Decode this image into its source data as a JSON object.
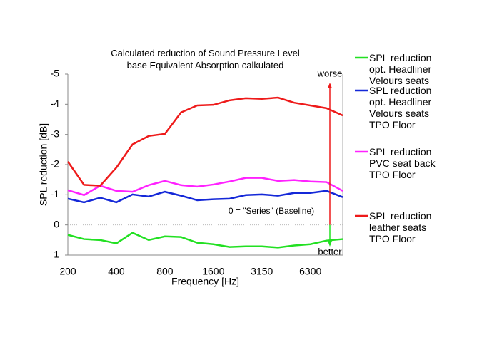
{
  "chart_data": {
    "type": "line",
    "title": "Calculated reduction of Sound Pressure Level\nbase Equivalent Absorption calkulated",
    "x_label": "Frequency [Hz]",
    "y_label": "SPL reduction [dB]",
    "categories": [
      "200",
      null,
      null,
      "400",
      null,
      null,
      "800",
      null,
      null,
      "1600",
      null,
      null,
      "3150",
      null,
      null,
      "6300",
      null,
      null
    ],
    "ylim": [
      -5,
      1
    ],
    "y_inverted": true,
    "yticks": [
      -5,
      -4,
      -3,
      -2,
      -1,
      0,
      1
    ],
    "annotations": [
      "worse",
      "better",
      "0 = \"Series\" (Baseline)"
    ],
    "series": [
      {
        "name": "SPL reduction\nopt. Headliner\nVelours seats",
        "color": "#22e022",
        "values": [
          0.33,
          0.47,
          0.5,
          0.61,
          0.26,
          0.5,
          0.38,
          0.4,
          0.59,
          0.64,
          0.73,
          0.71,
          0.71,
          0.75,
          0.68,
          0.64,
          0.52,
          0.47
        ]
      },
      {
        "name": "SPL reduction\nopt. Headliner\nVelours seats\nTPO Floor",
        "color": "#1428d8",
        "values": [
          -0.87,
          -0.75,
          -0.9,
          -0.75,
          -1.01,
          -0.94,
          -1.1,
          -0.97,
          -0.82,
          -0.85,
          -0.87,
          -0.99,
          -1.01,
          -0.97,
          -1.06,
          -1.06,
          -1.13,
          -0.92
        ]
      },
      {
        "name": "SPL reduction\nPVC seat back\nTPO Floor",
        "color": "#ff22ff",
        "values": [
          -1.15,
          -0.99,
          -1.3,
          -1.13,
          -1.1,
          -1.32,
          -1.46,
          -1.32,
          -1.27,
          -1.34,
          -1.44,
          -1.56,
          -1.56,
          -1.46,
          -1.49,
          -1.44,
          -1.42,
          -1.13
        ]
      },
      {
        "name": "SPL reduction\nleather seats\nTPO Floor",
        "color": "#ee1a1a",
        "values": [
          -2.1,
          -1.33,
          -1.3,
          -1.9,
          -2.67,
          -2.95,
          -3.02,
          -3.73,
          -3.96,
          -3.98,
          -4.13,
          -4.2,
          -4.18,
          -4.22,
          -4.05,
          -3.96,
          -3.87,
          -3.63
        ]
      }
    ]
  }
}
